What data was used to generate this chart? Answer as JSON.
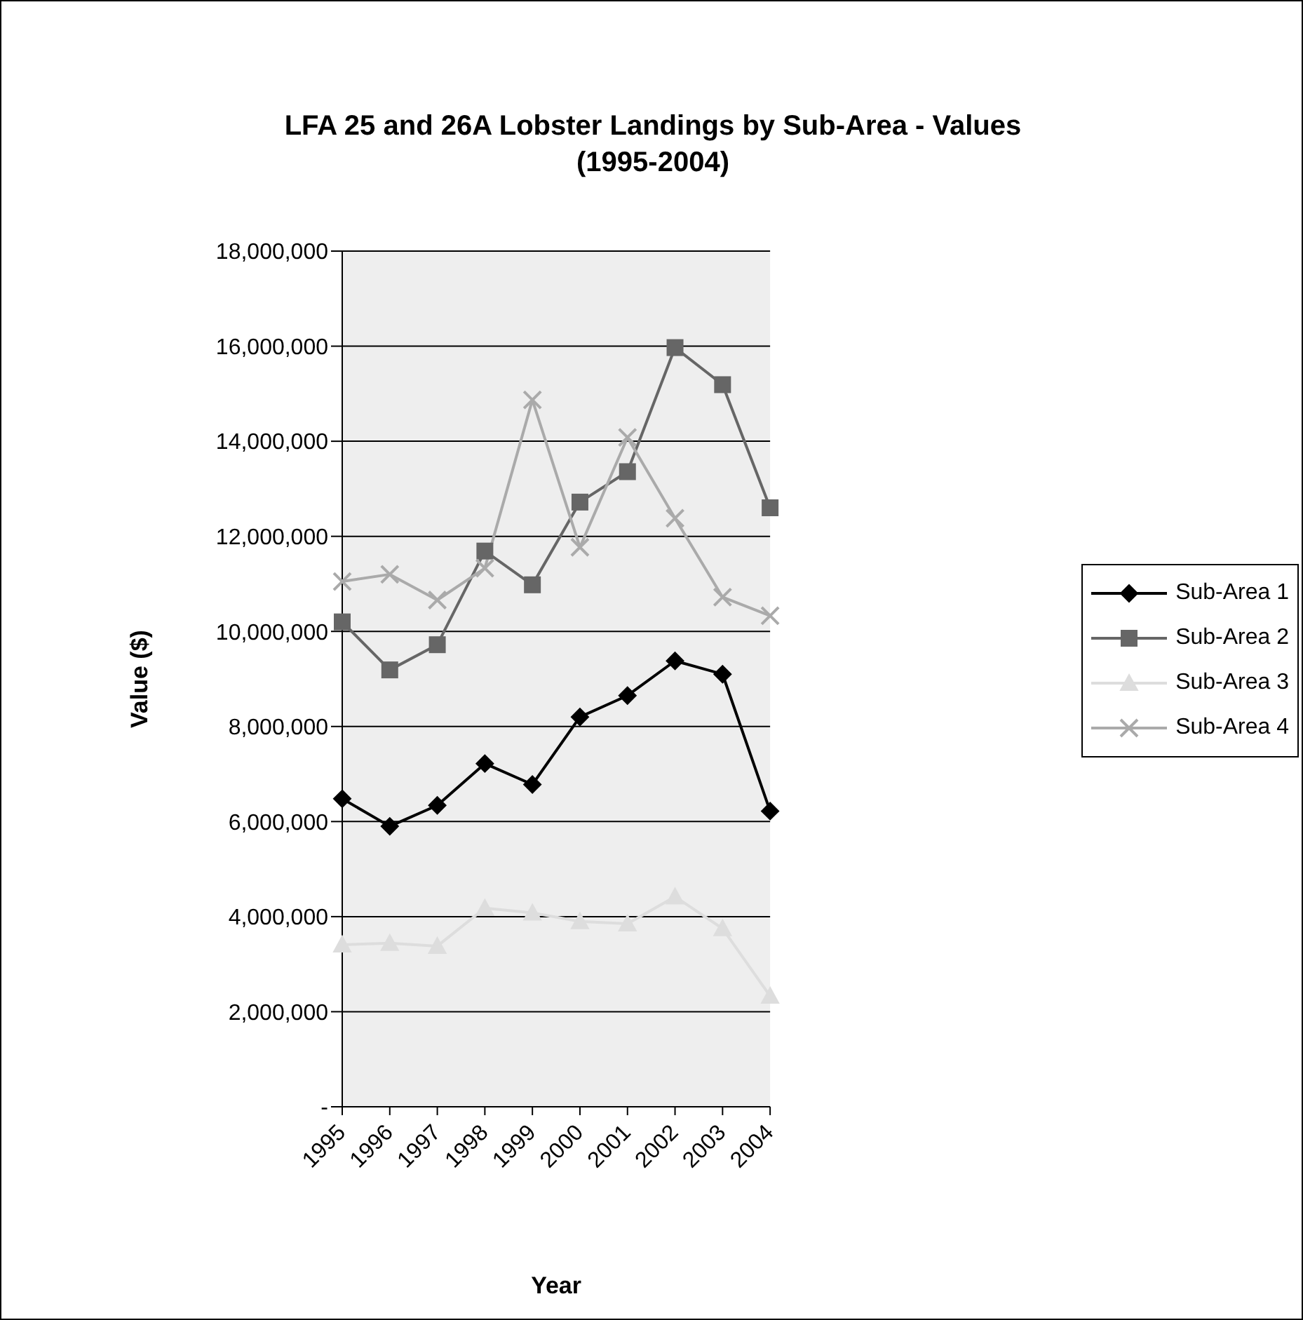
{
  "chart_data": {
    "type": "line",
    "title": "LFA 25 and 26A Lobster Landings by Sub-Area - Values",
    "subtitle": "(1995-2004)",
    "xlabel": "Year",
    "ylabel": "Value ($)",
    "categories": [
      "1995",
      "1996",
      "1997",
      "1998",
      "1999",
      "2000",
      "2001",
      "2002",
      "2003",
      "2004"
    ],
    "series": [
      {
        "name": "Sub-Area 1",
        "color": "#000000",
        "marker": "diamond",
        "values": [
          6480000,
          5900000,
          6340000,
          7220000,
          6780000,
          8200000,
          8650000,
          9380000,
          9100000,
          6220000
        ]
      },
      {
        "name": "Sub-Area 2",
        "color": "#666666",
        "marker": "square",
        "values": [
          10200000,
          9190000,
          9720000,
          11690000,
          10980000,
          12720000,
          13360000,
          15970000,
          15190000,
          12600000
        ]
      },
      {
        "name": "Sub-Area 3",
        "color": "#dddddd",
        "marker": "triangle",
        "values": [
          3410000,
          3440000,
          3380000,
          4180000,
          4080000,
          3900000,
          3850000,
          4420000,
          3750000,
          2330000
        ]
      },
      {
        "name": "Sub-Area 4",
        "color": "#aaaaaa",
        "marker": "cross",
        "values": [
          11050000,
          11200000,
          10660000,
          11330000,
          14870000,
          11770000,
          14080000,
          12380000,
          10720000,
          10330000
        ]
      }
    ],
    "ylim": [
      0,
      18000000
    ],
    "yticks": [
      {
        "value": 0,
        "label": "-"
      },
      {
        "value": 2000000,
        "label": "2,000,000"
      },
      {
        "value": 4000000,
        "label": "4,000,000"
      },
      {
        "value": 6000000,
        "label": "6,000,000"
      },
      {
        "value": 8000000,
        "label": "8,000,000"
      },
      {
        "value": 10000000,
        "label": "10,000,000"
      },
      {
        "value": 12000000,
        "label": "12,000,000"
      },
      {
        "value": 14000000,
        "label": "14,000,000"
      },
      {
        "value": 16000000,
        "label": "16,000,000"
      },
      {
        "value": 18000000,
        "label": "18,000,000"
      }
    ],
    "grid": "y",
    "legend": "right",
    "line_style": "solid"
  }
}
